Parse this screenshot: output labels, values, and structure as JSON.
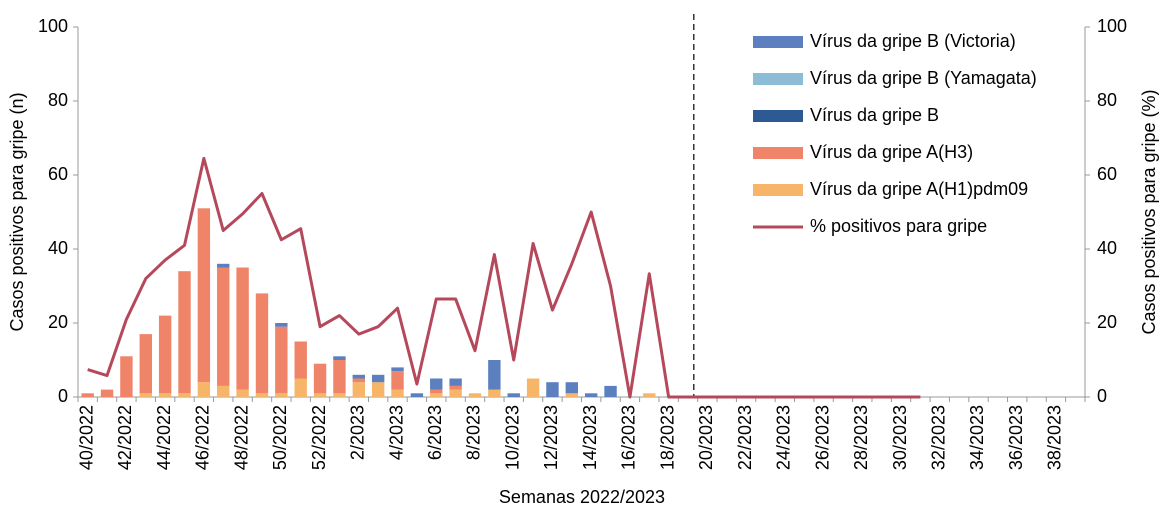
{
  "chart_data": {
    "type": "bar-line",
    "xlabel": "Semanas 2022/2023",
    "ylabel": "Casos positivos para gripe (n)",
    "y2label": "Casos positivos para gripe (%)",
    "categories": [
      "40/2022",
      null,
      "42/2022",
      null,
      "44/2022",
      null,
      "46/2022",
      null,
      "48/2022",
      null,
      "50/2022",
      null,
      "52/2022",
      null,
      "2/2023",
      null,
      "4/2023",
      null,
      "6/2023",
      null,
      "8/2023",
      null,
      "10/2023",
      null,
      "12/2023",
      null,
      "14/2023",
      null,
      "16/2023",
      null,
      "18/2023",
      null,
      "20/2023",
      null,
      "22/2023",
      null,
      "24/2023",
      null,
      "26/2023",
      null,
      "28/2023",
      null,
      "30/2023",
      null,
      "32/2023",
      null,
      "34/2023",
      null,
      "36/2023",
      null,
      "38/2023",
      null
    ],
    "series": [
      {
        "name": "Vírus da gripe A(H1)pdm09",
        "type": "bar",
        "color": "#f7b56a",
        "values": [
          0,
          0,
          0,
          1,
          1,
          1,
          4,
          3,
          2,
          1,
          1,
          5,
          1,
          1,
          4,
          4,
          2,
          0,
          1,
          2,
          1,
          2,
          0,
          5,
          0,
          1,
          0,
          0,
          0,
          1,
          0,
          0,
          0,
          0,
          0,
          0,
          0,
          0,
          0,
          0,
          0,
          0,
          0,
          0,
          0,
          0,
          0,
          0,
          0,
          0,
          0,
          0
        ]
      },
      {
        "name": "Vírus da gripe A(H3)",
        "type": "bar",
        "color": "#ef8468",
        "values": [
          1,
          2,
          11,
          16,
          21,
          33,
          47,
          32,
          33,
          27,
          18,
          10,
          8,
          9,
          1,
          0,
          5,
          0,
          1,
          1,
          0,
          0,
          0,
          0,
          0,
          0,
          0,
          0,
          0,
          0,
          0,
          0,
          0,
          0,
          0,
          0,
          0,
          0,
          0,
          0,
          0,
          0,
          0,
          0,
          0,
          0,
          0,
          0,
          0,
          0,
          0,
          0
        ]
      },
      {
        "name": "Vírus da gripe B",
        "type": "bar",
        "color": "#2e5a94",
        "values": [
          0,
          0,
          0,
          0,
          0,
          0,
          0,
          0,
          0,
          0,
          0,
          0,
          0,
          0,
          0,
          0,
          0,
          0,
          0,
          0,
          0,
          0,
          0,
          0,
          0,
          0,
          0,
          0,
          0,
          0,
          0,
          0,
          0,
          0,
          0,
          0,
          0,
          0,
          0,
          0,
          0,
          0,
          0,
          0,
          0,
          0,
          0,
          0,
          0,
          0,
          0,
          0
        ]
      },
      {
        "name": "Vírus da gripe B (Yamagata)",
        "type": "bar",
        "color": "#8dbcd6",
        "values": [
          0,
          0,
          0,
          0,
          0,
          0,
          0,
          0,
          0,
          0,
          0,
          0,
          0,
          0,
          0,
          0,
          0,
          0,
          0,
          0,
          0,
          0,
          0,
          0,
          0,
          0,
          0,
          0,
          0,
          0,
          0,
          0,
          0,
          0,
          0,
          0,
          0,
          0,
          0,
          0,
          0,
          0,
          0,
          0,
          0,
          0,
          0,
          0,
          0,
          0,
          0,
          0
        ]
      },
      {
        "name": "Vírus da gripe B (Victoria)",
        "type": "bar",
        "color": "#5b7fbf",
        "values": [
          0,
          0,
          0,
          0,
          0,
          0,
          0,
          1,
          0,
          0,
          1,
          0,
          0,
          1,
          1,
          2,
          1,
          1,
          3,
          2,
          0,
          8,
          1,
          0,
          4,
          3,
          1,
          3,
          0,
          0,
          0,
          0,
          0,
          0,
          0,
          0,
          0,
          0,
          0,
          0,
          0,
          0,
          0,
          0,
          0,
          0,
          0,
          0,
          0,
          0,
          0,
          0
        ]
      },
      {
        "name": "% positivos para gripe",
        "type": "line",
        "axis": "y2",
        "color": "#b5485b",
        "values": [
          7.4,
          5.8,
          21,
          32,
          37,
          41,
          64.5,
          45,
          49.5,
          55,
          42.5,
          45.5,
          19,
          22,
          17,
          19,
          24,
          3.5,
          26.5,
          26.5,
          12.5,
          38.5,
          10,
          41.5,
          23.5,
          36,
          50,
          30,
          0,
          33.3,
          0,
          0,
          0,
          0,
          0,
          0,
          0,
          0,
          0,
          0,
          0,
          0,
          0,
          0,
          null,
          null,
          null,
          null,
          null,
          null,
          null,
          null
        ]
      }
    ],
    "ylim": [
      0,
      100
    ],
    "yticks": [
      0,
      20,
      40,
      60,
      80,
      100
    ],
    "y2lim": [
      0,
      100
    ],
    "y2ticks": [
      0,
      20,
      40,
      60,
      80,
      100
    ],
    "legend": "upper right"
  }
}
